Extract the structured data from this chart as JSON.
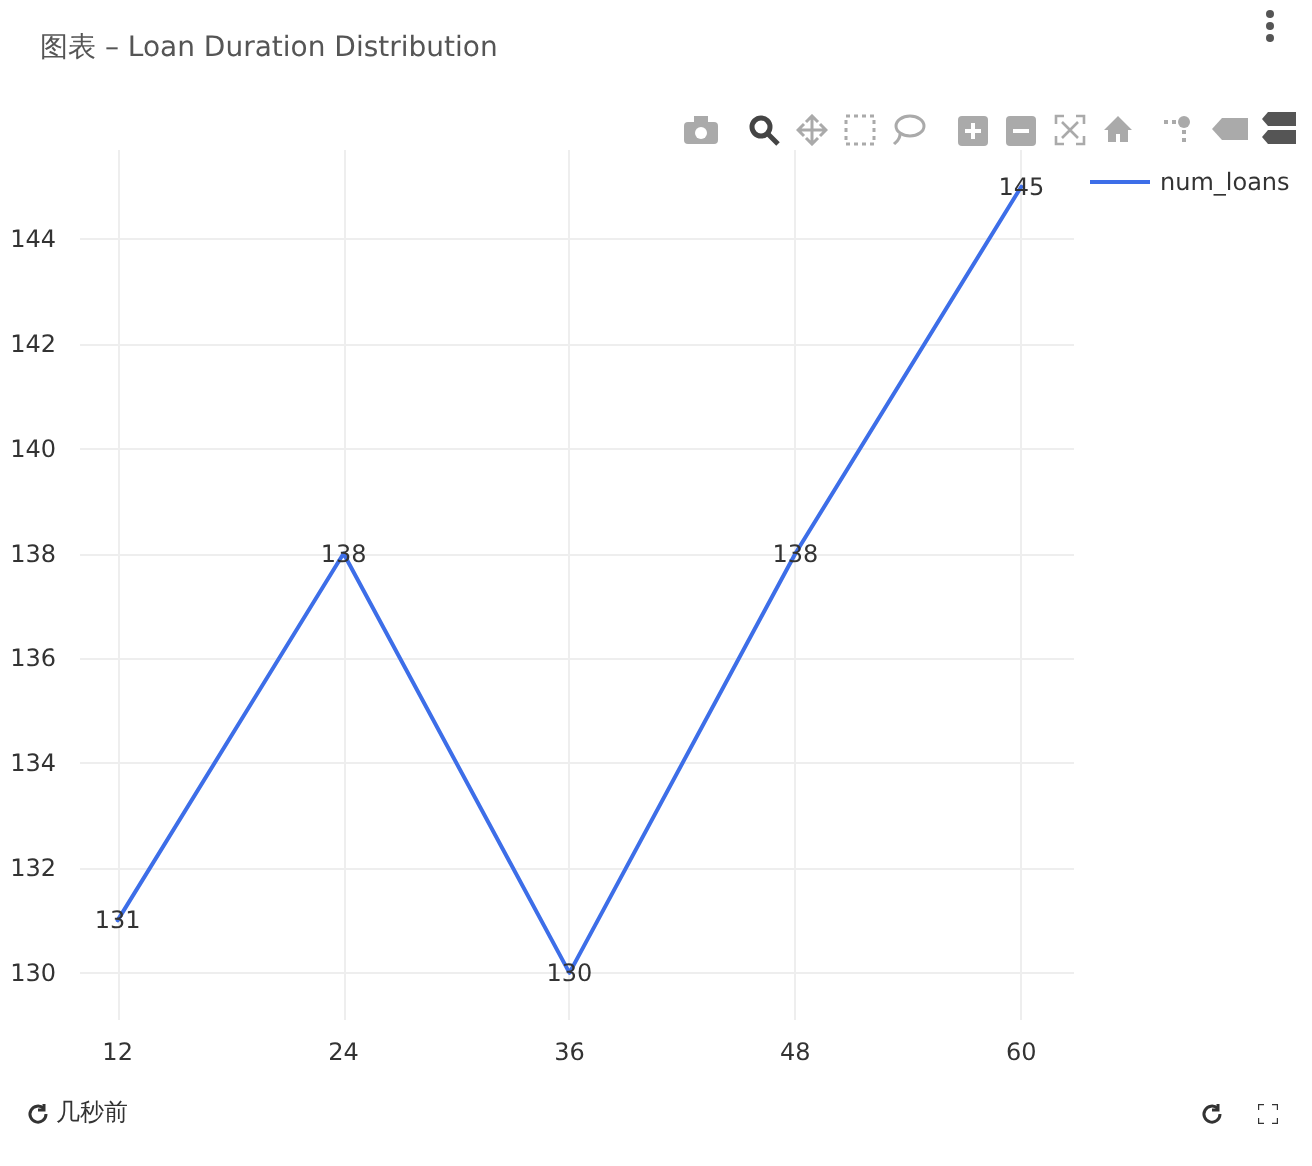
{
  "chart_data": {
    "type": "line",
    "title": "图表 – Loan Duration Distribution",
    "x": [
      12,
      24,
      36,
      48,
      60
    ],
    "series": [
      {
        "name": "num_loans",
        "color": "#3d6ee8",
        "values": [
          131,
          138,
          130,
          138,
          145
        ]
      }
    ],
    "xlim": [
      10,
      62.8
    ],
    "xticks": [
      12,
      24,
      36,
      48,
      60
    ],
    "ylim": [
      129.1,
      145.7
    ],
    "yticks": [
      130,
      132,
      134,
      136,
      138,
      140,
      142,
      144
    ],
    "grid": true,
    "legend": "top right",
    "marker": "none",
    "line_style": "solid",
    "data_labels": true,
    "annotations": [
      "几秒前"
    ]
  }
}
